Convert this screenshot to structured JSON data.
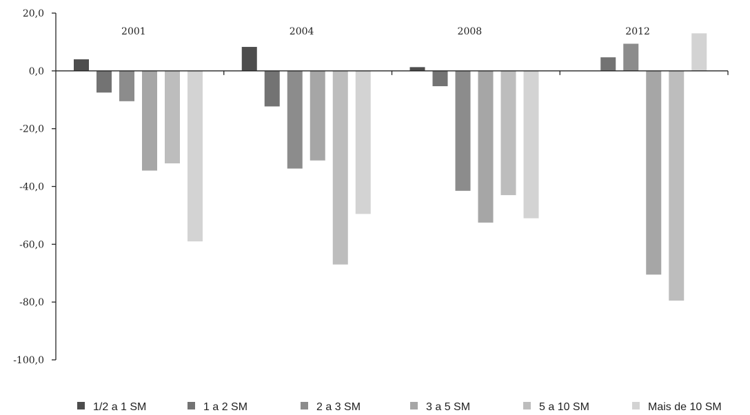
{
  "chart_data": {
    "type": "bar",
    "title": "",
    "xlabel": "",
    "ylabel": "",
    "ylim": [
      -100,
      20
    ],
    "y_ticks": [
      "20,0",
      "0,0",
      "-20,0",
      "-40,0",
      "-60,0",
      "-80,0",
      "-100,0"
    ],
    "y_tick_values": [
      20,
      0,
      -20,
      -40,
      -60,
      -80,
      -100
    ],
    "categories": [
      "2001",
      "2004",
      "2008",
      "2012"
    ],
    "series": [
      {
        "name": "1/2 a 1 SM",
        "color": "#4d4d4d",
        "values": [
          4.0,
          8.3,
          1.3,
          null
        ]
      },
      {
        "name": "1 a 2 SM",
        "color": "#737373",
        "values": [
          -7.5,
          -12.3,
          -5.3,
          4.7
        ]
      },
      {
        "name": "2 a 3 SM",
        "color": "#8c8c8c",
        "values": [
          -10.5,
          -33.8,
          -41.5,
          9.4
        ]
      },
      {
        "name": "3 a 5 SM",
        "color": "#a6a6a6",
        "values": [
          -34.5,
          -31.0,
          -52.5,
          -70.5
        ]
      },
      {
        "name": "5 a 10 SM",
        "color": "#bdbdbd",
        "values": [
          -32.0,
          -67.0,
          -43.0,
          -79.5
        ]
      },
      {
        "name": "Mais de 10 SM",
        "color": "#d3d3d3",
        "values": [
          -59.0,
          -49.5,
          -51.0,
          13.0
        ]
      }
    ],
    "grid": false,
    "legend_position": "bottom"
  }
}
